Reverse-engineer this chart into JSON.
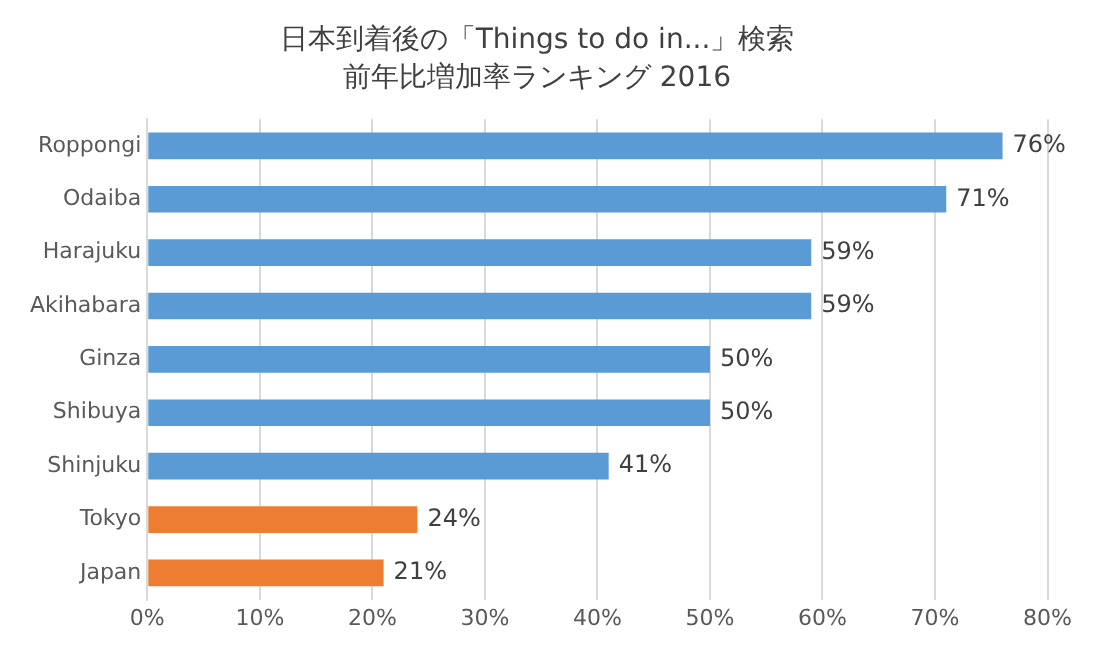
{
  "chart_data": {
    "type": "bar",
    "orientation": "horizontal",
    "title": "日本到着後の「Things to do in...」検索",
    "subtitle": "前年比増加率ランキング 2016",
    "categories": [
      "Roppongi",
      "Odaiba",
      "Harajuku",
      "Akihabara",
      "Ginza",
      "Shibuya",
      "Shinjuku",
      "Tokyo",
      "Japan"
    ],
    "values": [
      76,
      71,
      59,
      59,
      50,
      50,
      41,
      24,
      21
    ],
    "colors": [
      "#5b9bd5",
      "#5b9bd5",
      "#5b9bd5",
      "#5b9bd5",
      "#5b9bd5",
      "#5b9bd5",
      "#5b9bd5",
      "#ed7d31",
      "#ed7d31"
    ],
    "value_labels": [
      "76%",
      "71%",
      "59%",
      "59%",
      "50%",
      "50%",
      "41%",
      "24%",
      "21%"
    ],
    "xlim": [
      0,
      80
    ],
    "xticks": [
      {
        "value": 0,
        "label": "0%"
      },
      {
        "value": 10,
        "label": "10%"
      },
      {
        "value": 20,
        "label": "20%"
      },
      {
        "value": 30,
        "label": "30%"
      },
      {
        "value": 40,
        "label": "40%"
      },
      {
        "value": 50,
        "label": "50%"
      },
      {
        "value": 60,
        "label": "60%"
      },
      {
        "value": 70,
        "label": "70%"
      },
      {
        "value": 80,
        "label": "80%"
      }
    ],
    "grid": "x",
    "legend": false
  }
}
